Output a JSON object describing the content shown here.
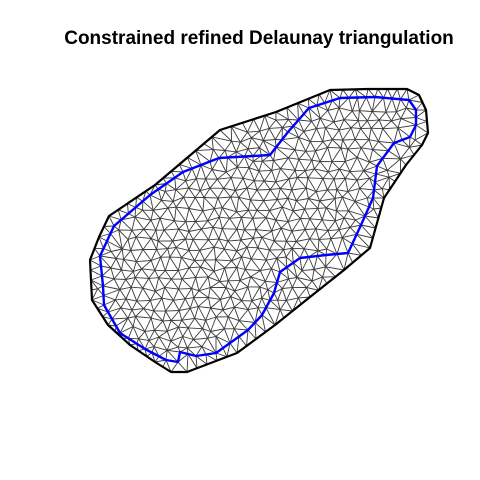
{
  "title": "Constrained refined Delaunay triangulation",
  "colors": {
    "background": "#ffffff",
    "mesh_edges": "#3a3a3a",
    "outer_hull": "#000000",
    "inner_boundary": "#0000ff"
  }
}
